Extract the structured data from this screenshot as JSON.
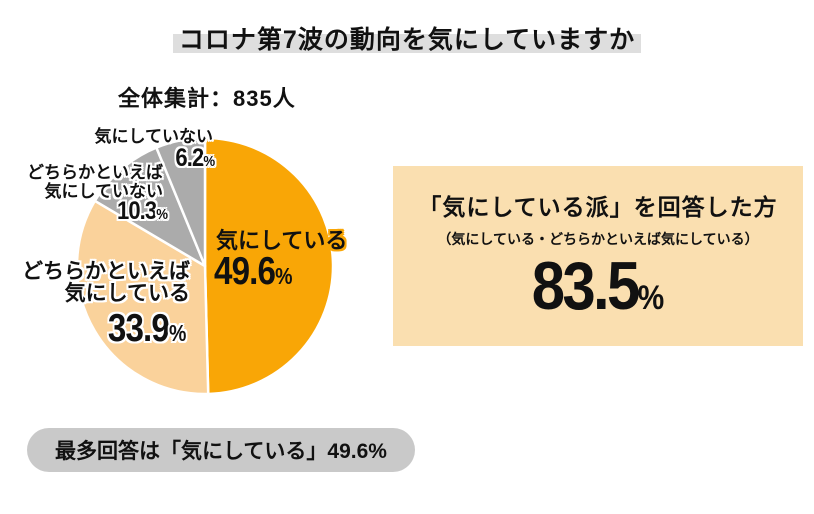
{
  "title": "コロナ第7波の動向を気にしていますか",
  "total_label": "全体集計：835人",
  "chart_data": {
    "type": "pie",
    "title": "コロナ第7波の動向を気にしていますか",
    "total_label": "全体集計：835人",
    "start_angle": "12-oclock",
    "direction": "clockwise",
    "labels_on_chart": true,
    "unit": "%",
    "slices": [
      {
        "label": "気にしている",
        "value": 49.6,
        "color": "#F9A606"
      },
      {
        "label": "どちらかといえば気にしている",
        "value": 33.9,
        "color": "#FAD29B"
      },
      {
        "label": "どちらかといえば気にしていない",
        "value": 10.3,
        "color": "#ABABAB"
      },
      {
        "label": "気にしていない",
        "value": 6.2,
        "color": "#ABABAB"
      }
    ]
  },
  "pie_labels": {
    "care": {
      "name": "気にしている",
      "pct": "49.6",
      "unit": "%"
    },
    "rather_care": {
      "line1": "どちらかといえば",
      "line2": "気にしている",
      "pct": "33.9",
      "unit": "%"
    },
    "rather_not": {
      "line1": "どちらかといえば",
      "line2": "気にしていない",
      "pct": "10.3",
      "unit": "%"
    },
    "not_care": {
      "name": "気にしていない",
      "pct": "6.2",
      "unit": "%"
    }
  },
  "summary_box": {
    "title": "「気にしている派」を回答した方",
    "subtitle": "（気にしている・どちらかといえば気にしている）",
    "value": "83.5",
    "unit": "%"
  },
  "footer": {
    "text": "最多回答は「気にしている」49.6%"
  },
  "colors": {
    "orange": "#F9A606",
    "peach": "#FAD29B",
    "gray": "#ABABAB",
    "summary_box_bg": "#FADFB0",
    "title_highlight": "#DEDEDE",
    "footer_pill_bg": "#C9C9C9",
    "text": "#111111"
  }
}
